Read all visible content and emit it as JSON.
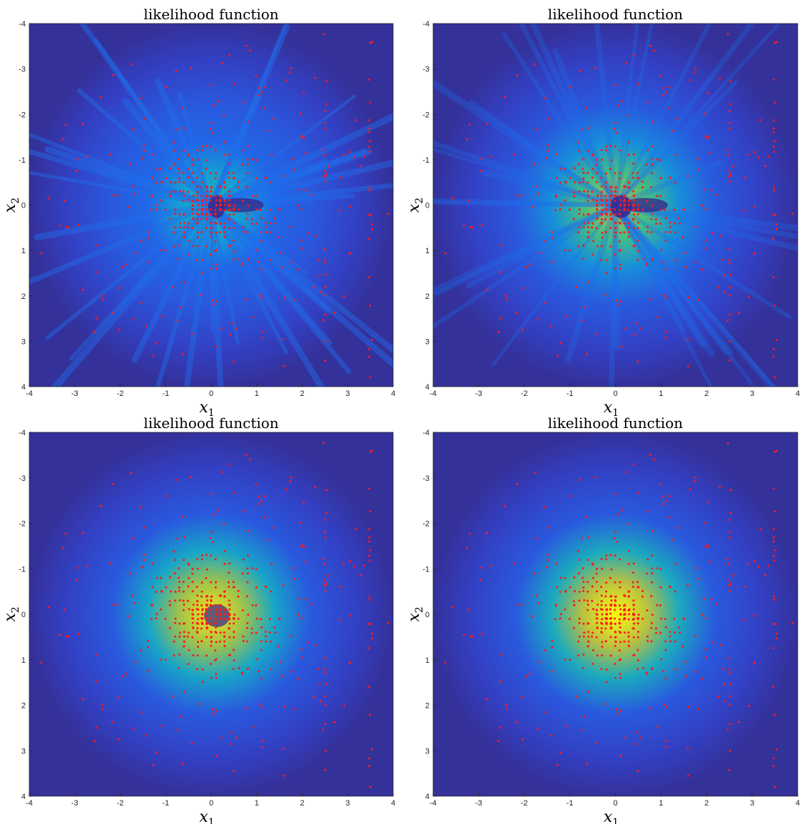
{
  "chart_data": [
    {
      "type": "heatmap",
      "title": "likelihood function",
      "xlabel": "x_1",
      "ylabel": "x_2",
      "xlim": [
        -4,
        4
      ],
      "ylim": [
        -4,
        4
      ],
      "y_axis_reversed": true,
      "xticks": [
        -4,
        -3,
        -2,
        -1,
        0,
        1,
        2,
        3,
        4
      ],
      "yticks": [
        -4,
        -3,
        -2,
        -1,
        0,
        1,
        2,
        3,
        4
      ],
      "colormap": "parula",
      "overlay": {
        "type": "scatter",
        "marker_color": "#ff1a1a",
        "description_counts_not_shown": false
      },
      "peak_level": 0.55,
      "has_hole": true,
      "streaks": true
    },
    {
      "type": "heatmap",
      "title": "likelihood function",
      "xlabel": "x_1",
      "ylabel": "x_2",
      "xlim": [
        -4,
        4
      ],
      "ylim": [
        -4,
        4
      ],
      "y_axis_reversed": true,
      "xticks": [
        -4,
        -3,
        -2,
        -1,
        0,
        1,
        2,
        3,
        4
      ],
      "yticks": [
        -4,
        -3,
        -2,
        -1,
        0,
        1,
        2,
        3,
        4
      ],
      "colormap": "parula",
      "overlay": {
        "type": "scatter",
        "marker_color": "#ff1a1a"
      },
      "peak_level": 0.8,
      "has_hole": true,
      "streaks": true
    },
    {
      "type": "heatmap",
      "title": "likelihood function",
      "xlabel": "x_1",
      "ylabel": "x_2",
      "xlim": [
        -4,
        4
      ],
      "ylim": [
        -4,
        4
      ],
      "y_axis_reversed": true,
      "xticks": [
        -4,
        -3,
        -2,
        -1,
        0,
        1,
        2,
        3,
        4
      ],
      "yticks": [
        -4,
        -3,
        -2,
        -1,
        0,
        1,
        2,
        3,
        4
      ],
      "colormap": "parula",
      "overlay": {
        "type": "scatter",
        "marker_color": "#ff1a1a"
      },
      "peak_level": 0.95,
      "has_hole": true,
      "streaks": false
    },
    {
      "type": "heatmap",
      "title": "likelihood function",
      "xlabel": "x_1",
      "ylabel": "x_2",
      "xlim": [
        -4,
        4
      ],
      "ylim": [
        -4,
        4
      ],
      "y_axis_reversed": true,
      "xticks": [
        -4,
        -3,
        -2,
        -1,
        0,
        1,
        2,
        3,
        4
      ],
      "yticks": [
        -4,
        -3,
        -2,
        -1,
        0,
        1,
        2,
        3,
        4
      ],
      "colormap": "parula",
      "overlay": {
        "type": "scatter",
        "marker_color": "#ff1a1a"
      },
      "peak_level": 1.0,
      "has_hole": false,
      "streaks": false
    }
  ]
}
